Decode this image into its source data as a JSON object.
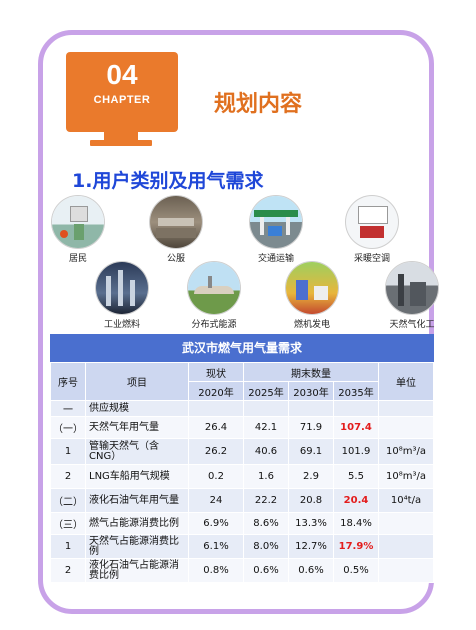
{
  "chapter": {
    "number": "04",
    "label": "CHAPTER",
    "title": "规划内容"
  },
  "section_title": "1.用户类别及用气需求",
  "categories": [
    "居民",
    "公服",
    "交通运输",
    "采暖空调",
    "工业燃料",
    "分布式能源",
    "燃机发电",
    "天然气化工"
  ],
  "table": {
    "title": "武汉市燃气用气量需求",
    "headers": {
      "no": "序号",
      "item": "项目",
      "current": "现状",
      "period": "期末数量",
      "unit": "单位"
    },
    "years": [
      "2020年",
      "2025年",
      "2030年",
      "2035年"
    ],
    "rows": [
      {
        "no": "一",
        "item": "供应规模",
        "v": [
          "",
          "",
          "",
          ""
        ],
        "unit": ""
      },
      {
        "no": "（一）",
        "item": "天然气年用气量",
        "v": [
          "26.4",
          "42.1",
          "71.9",
          "107.4"
        ],
        "unit": ""
      },
      {
        "no": "1",
        "item": "管输天然气（含CNG）",
        "v": [
          "26.2",
          "40.6",
          "69.1",
          "101.9"
        ],
        "unit": "10⁸m³/a"
      },
      {
        "no": "2",
        "item": "LNG车船用气规模",
        "v": [
          "0.2",
          "1.6",
          "2.9",
          "5.5"
        ],
        "unit": "10⁸m³/a"
      },
      {
        "no": "（二）",
        "item": "液化石油气年用气量",
        "v": [
          "24",
          "22.2",
          "20.8",
          "20.4"
        ],
        "unit": "10⁴t/a"
      },
      {
        "no": "（三）",
        "item": "燃气占能源消费比例",
        "v": [
          "6.9%",
          "8.6%",
          "13.3%",
          "18.4%"
        ],
        "unit": ""
      },
      {
        "no": "1",
        "item": "天然气占能源消费比例",
        "v": [
          "6.1%",
          "8.0%",
          "12.7%",
          "17.9%"
        ],
        "unit": ""
      },
      {
        "no": "2",
        "item": "液化石油气占能源消费比例",
        "v": [
          "0.8%",
          "0.6%",
          "0.6%",
          "0.5%"
        ],
        "unit": ""
      }
    ]
  }
}
